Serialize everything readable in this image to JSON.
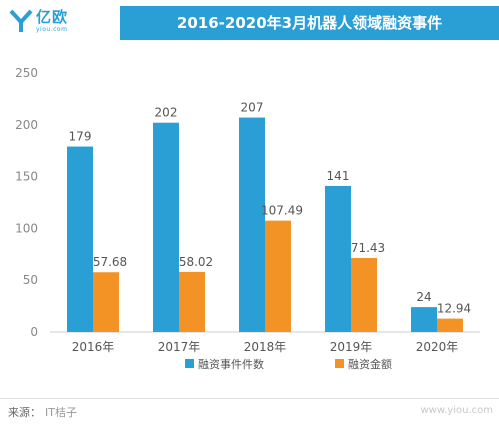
{
  "header": {
    "logo_text": "亿欧",
    "logo_sub": "yiou.com",
    "title": "2016-2020年3月机器人领域融资事件"
  },
  "chart_data": {
    "type": "bar",
    "title": "2016-2020年3月机器人领域融资事件",
    "categories": [
      "2016年",
      "2017年",
      "2018年",
      "2019年",
      "2020年"
    ],
    "series": [
      {
        "name": "融资事件件数",
        "color": "#2a9fd6",
        "values": [
          179,
          202,
          207,
          141,
          24
        ]
      },
      {
        "name": "融资金额",
        "color": "#f39325",
        "values": [
          57.68,
          58.02,
          107.49,
          71.43,
          12.94
        ]
      }
    ],
    "value_labels": [
      [
        "179",
        "202",
        "207",
        "141",
        "24"
      ],
      [
        "57.68",
        "58.02",
        "107.49",
        "71.43",
        "12.94"
      ]
    ],
    "ylim": [
      0,
      250
    ],
    "yticks": [
      0,
      50,
      100,
      150,
      200,
      250
    ],
    "grid": false,
    "legend_position": "bottom"
  },
  "footer": {
    "source_label": "来源：",
    "source_value": "IT桔子",
    "watermark": "www.yiou.com"
  }
}
